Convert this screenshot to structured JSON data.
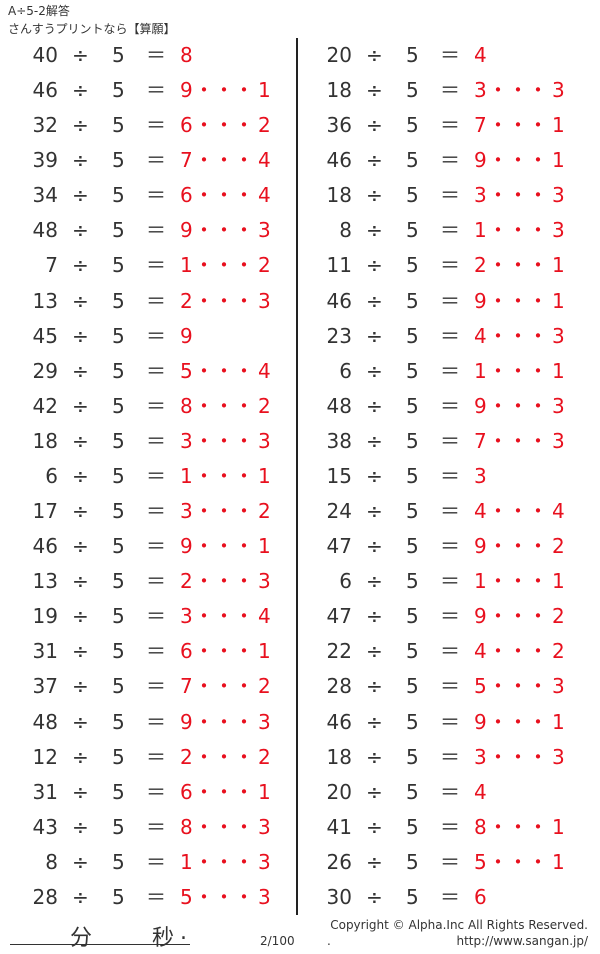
{
  "header": {
    "title": "A÷5-2解答",
    "subtitle": "さんすうプリントなら【算願】"
  },
  "symbols": {
    "divide": "÷",
    "equals": "＝",
    "dots": "・・・"
  },
  "colors": {
    "answer": "#e8101e",
    "text": "#333333"
  },
  "left_column": [
    [
      "40",
      "5",
      "8",
      null
    ],
    [
      "46",
      "5",
      "9",
      "1"
    ],
    [
      "32",
      "5",
      "6",
      "2"
    ],
    [
      "39",
      "5",
      "7",
      "4"
    ],
    [
      "34",
      "5",
      "6",
      "4"
    ],
    [
      "48",
      "5",
      "9",
      "3"
    ],
    [
      "7",
      "5",
      "1",
      "2"
    ],
    [
      "13",
      "5",
      "2",
      "3"
    ],
    [
      "45",
      "5",
      "9",
      null
    ],
    [
      "29",
      "5",
      "5",
      "4"
    ],
    [
      "42",
      "5",
      "8",
      "2"
    ],
    [
      "18",
      "5",
      "3",
      "3"
    ],
    [
      "6",
      "5",
      "1",
      "1"
    ],
    [
      "17",
      "5",
      "3",
      "2"
    ],
    [
      "46",
      "5",
      "9",
      "1"
    ],
    [
      "13",
      "5",
      "2",
      "3"
    ],
    [
      "19",
      "5",
      "3",
      "4"
    ],
    [
      "31",
      "5",
      "6",
      "1"
    ],
    [
      "37",
      "5",
      "7",
      "2"
    ],
    [
      "48",
      "5",
      "9",
      "3"
    ],
    [
      "12",
      "5",
      "2",
      "2"
    ],
    [
      "31",
      "5",
      "6",
      "1"
    ],
    [
      "43",
      "5",
      "8",
      "3"
    ],
    [
      "8",
      "5",
      "1",
      "3"
    ],
    [
      "28",
      "5",
      "5",
      "3"
    ]
  ],
  "right_column": [
    [
      "20",
      "5",
      "4",
      null
    ],
    [
      "18",
      "5",
      "3",
      "3"
    ],
    [
      "36",
      "5",
      "7",
      "1"
    ],
    [
      "46",
      "5",
      "9",
      "1"
    ],
    [
      "18",
      "5",
      "3",
      "3"
    ],
    [
      "8",
      "5",
      "1",
      "3"
    ],
    [
      "11",
      "5",
      "2",
      "1"
    ],
    [
      "46",
      "5",
      "9",
      "1"
    ],
    [
      "23",
      "5",
      "4",
      "3"
    ],
    [
      "6",
      "5",
      "1",
      "1"
    ],
    [
      "48",
      "5",
      "9",
      "3"
    ],
    [
      "38",
      "5",
      "7",
      "3"
    ],
    [
      "15",
      "5",
      "3",
      null
    ],
    [
      "24",
      "5",
      "4",
      "4"
    ],
    [
      "47",
      "5",
      "9",
      "2"
    ],
    [
      "6",
      "5",
      "1",
      "1"
    ],
    [
      "47",
      "5",
      "9",
      "2"
    ],
    [
      "22",
      "5",
      "4",
      "2"
    ],
    [
      "28",
      "5",
      "5",
      "3"
    ],
    [
      "46",
      "5",
      "9",
      "1"
    ],
    [
      "18",
      "5",
      "3",
      "3"
    ],
    [
      "20",
      "5",
      "4",
      null
    ],
    [
      "41",
      "5",
      "8",
      "1"
    ],
    [
      "26",
      "5",
      "5",
      "1"
    ],
    [
      "30",
      "5",
      "6",
      null
    ]
  ],
  "footer": {
    "minutes_label": "分",
    "seconds_label": "秒",
    "period": ".",
    "page": "2/100",
    "copyright": "Copyright ©  Alpha.Inc All Rights Reserved.",
    "url": "http://www.sangan.jp/",
    "dot": "."
  }
}
